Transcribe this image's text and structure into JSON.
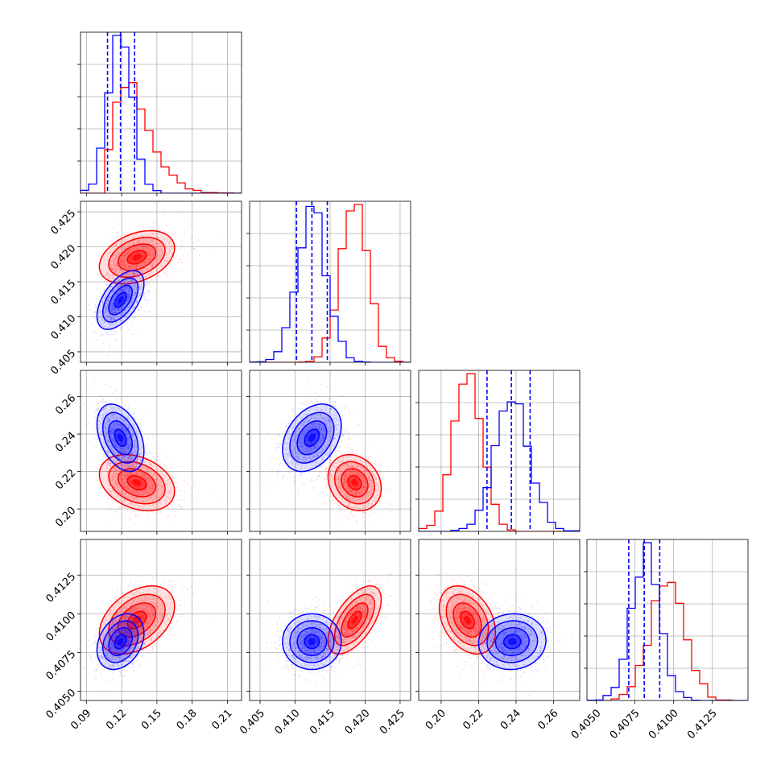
{
  "chart_data": {
    "type": "corner",
    "title": "",
    "grid": true,
    "parameters": [
      "",
      "",
      "",
      ""
    ],
    "series": [
      {
        "color": "#ff0000",
        "mean": [
          0.133,
          0.4185,
          0.214,
          0.4096
        ],
        "std": [
          0.016,
          0.0019,
          0.0075,
          0.0011
        ],
        "correlation": [
          [
            1.0,
            0.35,
            -0.3,
            0.4
          ],
          [
            0.35,
            1.0,
            -0.2,
            0.6
          ],
          [
            -0.3,
            -0.2,
            1.0,
            -0.35
          ],
          [
            0.4,
            0.6,
            -0.35,
            1.0
          ]
        ]
      },
      {
        "color": "#0000ff",
        "mean": [
          0.119,
          0.4124,
          0.238,
          0.4082
        ],
        "std": [
          0.01,
          0.0021,
          0.009,
          0.0009
        ],
        "correlation": [
          [
            1.0,
            0.55,
            -0.4,
            0.3
          ],
          [
            0.55,
            1.0,
            0.35,
            0.0
          ],
          [
            -0.4,
            0.35,
            1.0,
            0.05
          ],
          [
            0.3,
            0.0,
            0.05,
            1.0
          ]
        ],
        "quantiles": [
          [
            0.108,
            0.119,
            0.131
          ],
          [
            0.4102,
            0.4124,
            0.4146
          ],
          [
            0.2245,
            0.2375,
            0.2475
          ],
          [
            0.4071,
            0.4081,
            0.4091
          ]
        ]
      }
    ],
    "axes": [
      {
        "range": [
          0.085,
          0.222
        ],
        "ticks": [
          0.09,
          0.12,
          0.15,
          0.18,
          0.21
        ],
        "tick_labels": [
          "0.09",
          "0.12",
          "0.15",
          "0.18",
          "0.21"
        ]
      },
      {
        "range": [
          0.4035,
          0.4265
        ],
        "ticks": [
          0.405,
          0.41,
          0.415,
          0.42,
          0.425
        ],
        "tick_labels": [
          "0.405",
          "0.410",
          "0.415",
          "0.420",
          "0.425"
        ]
      },
      {
        "range": [
          0.188,
          0.274
        ],
        "ticks": [
          0.2,
          0.22,
          0.24,
          0.26
        ],
        "tick_labels": [
          "0.20",
          "0.22",
          "0.24",
          "0.26"
        ]
      },
      {
        "range": [
          0.4044,
          0.4148
        ],
        "ticks": [
          0.405,
          0.4075,
          0.41,
          0.4125
        ],
        "tick_labels": [
          "0.4050",
          "0.4075",
          "0.4100",
          "0.4125"
        ]
      }
    ]
  }
}
